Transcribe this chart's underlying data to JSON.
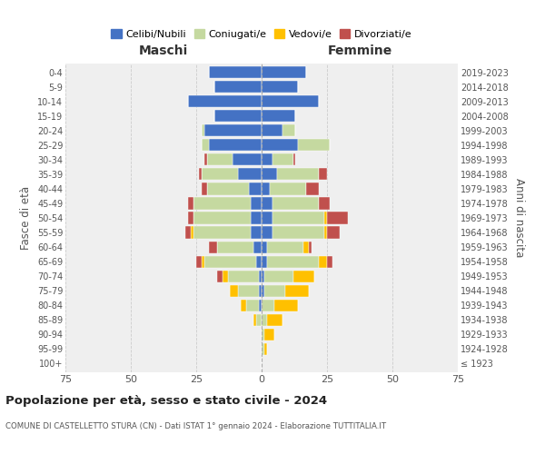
{
  "age_groups": [
    "100+",
    "95-99",
    "90-94",
    "85-89",
    "80-84",
    "75-79",
    "70-74",
    "65-69",
    "60-64",
    "55-59",
    "50-54",
    "45-49",
    "40-44",
    "35-39",
    "30-34",
    "25-29",
    "20-24",
    "15-19",
    "10-14",
    "5-9",
    "0-4"
  ],
  "birth_years": [
    "≤ 1923",
    "1924-1928",
    "1929-1933",
    "1934-1938",
    "1939-1943",
    "1944-1948",
    "1949-1953",
    "1954-1958",
    "1959-1963",
    "1964-1968",
    "1969-1973",
    "1974-1978",
    "1979-1983",
    "1984-1988",
    "1989-1993",
    "1994-1998",
    "1999-2003",
    "2004-2008",
    "2009-2013",
    "2014-2018",
    "2019-2023"
  ],
  "maschi": {
    "celibi": [
      0,
      0,
      0,
      0,
      1,
      1,
      1,
      2,
      3,
      4,
      4,
      4,
      5,
      9,
      11,
      20,
      22,
      18,
      28,
      18,
      20
    ],
    "coniugati": [
      0,
      0,
      0,
      2,
      5,
      8,
      12,
      20,
      14,
      22,
      22,
      22,
      16,
      14,
      10,
      3,
      1,
      0,
      0,
      0,
      0
    ],
    "vedovi": [
      0,
      0,
      0,
      1,
      2,
      3,
      2,
      1,
      0,
      1,
      0,
      0,
      0,
      0,
      0,
      0,
      0,
      0,
      0,
      0,
      0
    ],
    "divorziati": [
      0,
      0,
      0,
      0,
      0,
      0,
      2,
      2,
      3,
      2,
      2,
      2,
      2,
      1,
      1,
      0,
      0,
      0,
      0,
      0,
      0
    ]
  },
  "femmine": {
    "nubili": [
      0,
      0,
      0,
      0,
      0,
      1,
      1,
      2,
      2,
      4,
      4,
      4,
      3,
      6,
      4,
      14,
      8,
      13,
      22,
      14,
      17
    ],
    "coniugate": [
      0,
      1,
      1,
      2,
      5,
      8,
      11,
      20,
      14,
      20,
      20,
      18,
      14,
      16,
      8,
      12,
      5,
      0,
      0,
      0,
      0
    ],
    "vedove": [
      0,
      1,
      4,
      6,
      9,
      9,
      8,
      3,
      2,
      1,
      1,
      0,
      0,
      0,
      0,
      0,
      0,
      0,
      0,
      0,
      0
    ],
    "divorziate": [
      0,
      0,
      0,
      0,
      0,
      0,
      0,
      2,
      1,
      5,
      8,
      4,
      5,
      3,
      1,
      0,
      0,
      0,
      0,
      0,
      0
    ]
  },
  "colors": {
    "celibi": "#4472c4",
    "coniugati": "#c5d9a0",
    "vedovi": "#ffc000",
    "divorziati": "#c0504d"
  },
  "xlim": 75,
  "title_main": "Popolazione per età, sesso e stato civile - 2024",
  "title_sub": "COMUNE DI CASTELLETTO STURA (CN) - Dati ISTAT 1° gennaio 2024 - Elaborazione TUTTITALIA.IT",
  "ylabel_left": "Fasce di età",
  "ylabel_right": "Anni di nascita",
  "xlabel_maschi": "Maschi",
  "xlabel_femmine": "Femmine",
  "legend_labels": [
    "Celibi/Nubili",
    "Coniugati/e",
    "Vedovi/e",
    "Divorziati/e"
  ],
  "bg_color": "#ffffff",
  "plot_bg": "#efefef"
}
